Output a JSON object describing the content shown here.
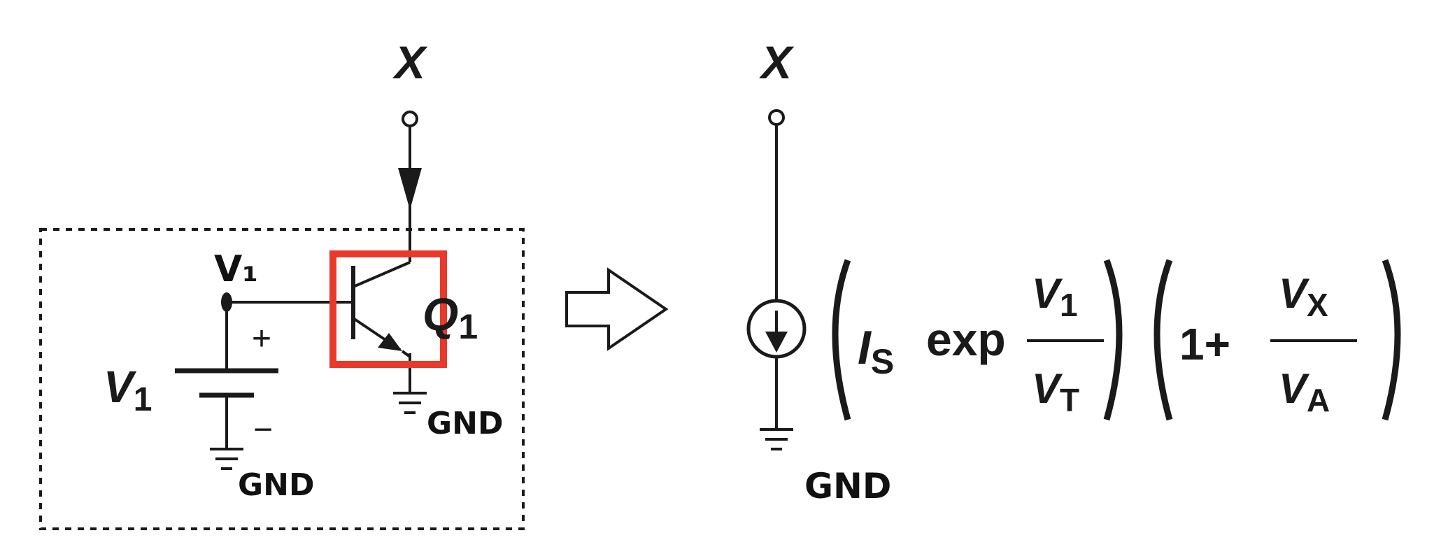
{
  "colors": {
    "ink": "#1a1a1a",
    "highlight": "#e8392b",
    "paper": "#ffffff"
  },
  "left_circuit": {
    "node_label": "X",
    "base_node_label": "V₁",
    "source_label": "V",
    "source_label_sub": "1",
    "plus_sign": "+",
    "minus_sign": "−",
    "transistor_label": "Q",
    "transistor_label_sub": "1",
    "ground_label_source": "GND",
    "ground_label_emitter": "GND"
  },
  "right_circuit": {
    "node_label": "X",
    "ground_label": "GND",
    "expression": {
      "is": "I",
      "is_sub": "S",
      "exp_word": "exp",
      "num1": "V",
      "num1_sub": "1",
      "den1": "V",
      "den1_sub": "T",
      "one_plus": "1+",
      "num2": "V",
      "num2_sub": "X",
      "den2": "V",
      "den2_sub": "A"
    }
  },
  "icons": {
    "arrow": "hollow-right-arrow-icon",
    "current_source": "current-source-icon",
    "ground": "ground-icon",
    "bjt": "npn-transistor-icon"
  }
}
